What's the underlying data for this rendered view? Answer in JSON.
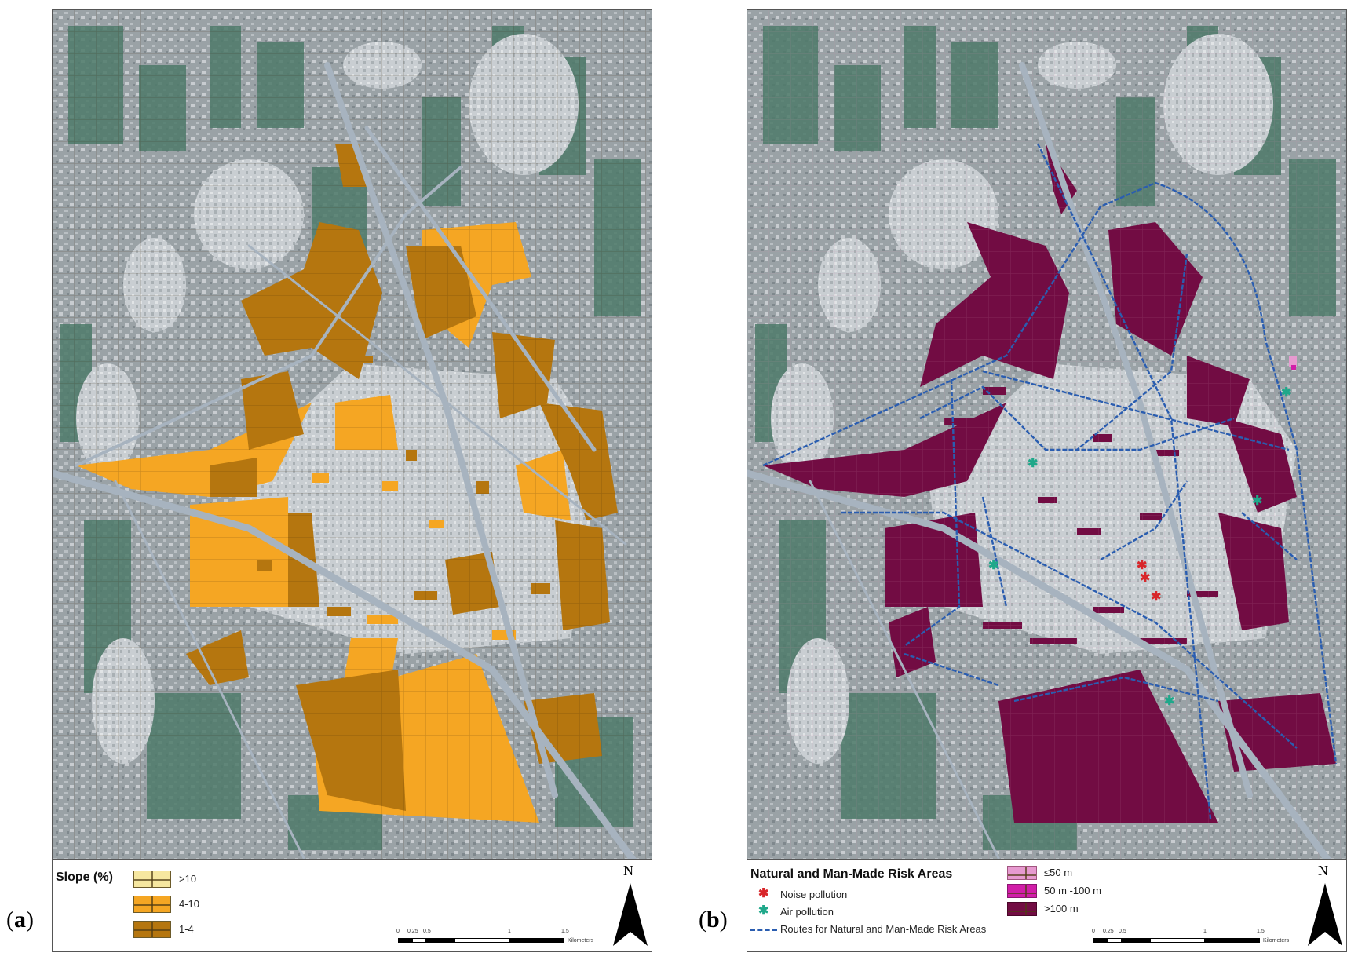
{
  "panels": [
    {
      "label_open": "(",
      "label_letter": "a",
      "label_close": ")",
      "legend_title": "Slope (%)",
      "legend_items": [
        {
          "label": ">10",
          "color": "#f6e7a0"
        },
        {
          "label": "4-10",
          "color": "#f5a623"
        },
        {
          "label": "1-4",
          "color": "#b5760f"
        }
      ],
      "scale_labels": [
        "0",
        "0.25",
        "0.5",
        "1",
        "1.5",
        "Kilometers"
      ],
      "north_label": "N"
    },
    {
      "label_open": "(",
      "label_letter": "b",
      "label_close": ")",
      "legend_title": "Natural and Man-Made Risk Areas",
      "noise_label": "Noise pollution",
      "air_label": "Air pollution",
      "routes_label": "Routes for Natural and Man-Made Risk Areas",
      "noise_color": "#d8262a",
      "air_color": "#1fa88a",
      "route_color": "#2a5db0",
      "legend_items": [
        {
          "label": "≤50 m",
          "color": "#e79ad0"
        },
        {
          "label": "50 m -100 m",
          "color": "#d11ea8"
        },
        {
          "label": ">100 m",
          "color": "#720c43"
        }
      ],
      "scale_labels": [
        "0",
        "0.25",
        "0.5",
        "1",
        "1.5",
        "Kilometers"
      ],
      "north_label": "N"
    }
  ],
  "colors": {
    "imagery_base": "#8e969a",
    "field_green": "#4e7a6a",
    "urban_light": "#c7ccd0",
    "road": "#a7b3bf",
    "slope_4_10": "#f5a623",
    "slope_1_4": "#b5760f",
    "risk_over_100": "#720c43"
  }
}
